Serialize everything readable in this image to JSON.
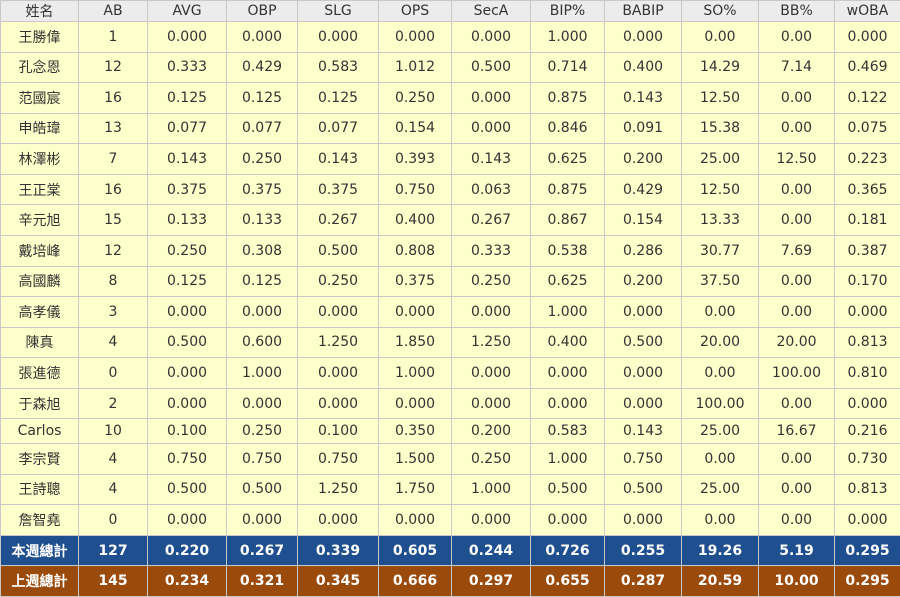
{
  "table": {
    "headers": [
      "姓名",
      "AB",
      "AVG",
      "OBP",
      "SLG",
      "OPS",
      "SecA",
      "BIP%",
      "BABIP",
      "SO%",
      "BB%",
      "wOBA"
    ],
    "rows": [
      [
        "王勝偉",
        "1",
        "0.000",
        "0.000",
        "0.000",
        "0.000",
        "0.000",
        "1.000",
        "0.000",
        "0.00",
        "0.00",
        "0.000"
      ],
      [
        "孔念恩",
        "12",
        "0.333",
        "0.429",
        "0.583",
        "1.012",
        "0.500",
        "0.714",
        "0.400",
        "14.29",
        "7.14",
        "0.469"
      ],
      [
        "范國宸",
        "16",
        "0.125",
        "0.125",
        "0.125",
        "0.250",
        "0.000",
        "0.875",
        "0.143",
        "12.50",
        "0.00",
        "0.122"
      ],
      [
        "申皓瑋",
        "13",
        "0.077",
        "0.077",
        "0.077",
        "0.154",
        "0.000",
        "0.846",
        "0.091",
        "15.38",
        "0.00",
        "0.075"
      ],
      [
        "林澤彬",
        "7",
        "0.143",
        "0.250",
        "0.143",
        "0.393",
        "0.143",
        "0.625",
        "0.200",
        "25.00",
        "12.50",
        "0.223"
      ],
      [
        "王正棠",
        "16",
        "0.375",
        "0.375",
        "0.375",
        "0.750",
        "0.063",
        "0.875",
        "0.429",
        "12.50",
        "0.00",
        "0.365"
      ],
      [
        "辛元旭",
        "15",
        "0.133",
        "0.133",
        "0.267",
        "0.400",
        "0.267",
        "0.867",
        "0.154",
        "13.33",
        "0.00",
        "0.181"
      ],
      [
        "戴培峰",
        "12",
        "0.250",
        "0.308",
        "0.500",
        "0.808",
        "0.333",
        "0.538",
        "0.286",
        "30.77",
        "7.69",
        "0.387"
      ],
      [
        "高國麟",
        "8",
        "0.125",
        "0.125",
        "0.250",
        "0.375",
        "0.250",
        "0.625",
        "0.200",
        "37.50",
        "0.00",
        "0.170"
      ],
      [
        "高孝儀",
        "3",
        "0.000",
        "0.000",
        "0.000",
        "0.000",
        "0.000",
        "1.000",
        "0.000",
        "0.00",
        "0.00",
        "0.000"
      ],
      [
        "陳真",
        "4",
        "0.500",
        "0.600",
        "1.250",
        "1.850",
        "1.250",
        "0.400",
        "0.500",
        "20.00",
        "20.00",
        "0.813"
      ],
      [
        "張進德",
        "0",
        "0.000",
        "1.000",
        "0.000",
        "1.000",
        "0.000",
        "0.000",
        "0.000",
        "0.00",
        "100.00",
        "0.810"
      ],
      [
        "于森旭",
        "2",
        "0.000",
        "0.000",
        "0.000",
        "0.000",
        "0.000",
        "0.000",
        "0.000",
        "100.00",
        "0.00",
        "0.000"
      ],
      [
        "Carlos",
        "10",
        "0.100",
        "0.250",
        "0.100",
        "0.350",
        "0.200",
        "0.583",
        "0.143",
        "25.00",
        "16.67",
        "0.216"
      ],
      [
        "李宗賢",
        "4",
        "0.750",
        "0.750",
        "0.750",
        "1.500",
        "0.250",
        "1.000",
        "0.750",
        "0.00",
        "0.00",
        "0.730"
      ],
      [
        "王詩聰",
        "4",
        "0.500",
        "0.500",
        "1.250",
        "1.750",
        "1.000",
        "0.500",
        "0.500",
        "25.00",
        "0.00",
        "0.813"
      ],
      [
        "詹智堯",
        "0",
        "0.000",
        "0.000",
        "0.000",
        "0.000",
        "0.000",
        "0.000",
        "0.000",
        "0.00",
        "0.00",
        "0.000"
      ]
    ],
    "totals": [
      [
        "本週總計",
        "127",
        "0.220",
        "0.267",
        "0.339",
        "0.605",
        "0.244",
        "0.726",
        "0.255",
        "19.26",
        "5.19",
        "0.295"
      ],
      [
        "上週總計",
        "145",
        "0.234",
        "0.321",
        "0.345",
        "0.666",
        "0.297",
        "0.655",
        "0.287",
        "20.59",
        "10.00",
        "0.295"
      ]
    ]
  }
}
